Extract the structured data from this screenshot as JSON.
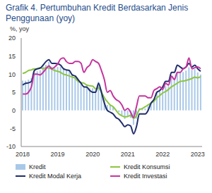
{
  "chart_data": {
    "type": "bar_line",
    "title": "Grafik 4. Pertumbuhan Kredit Berdasarkan Jenis Penggunaan (yoy)",
    "y_label": "%, yoy",
    "categories": [
      "2018",
      null,
      null,
      null,
      null,
      null,
      null,
      null,
      null,
      null,
      null,
      null,
      "2019",
      null,
      null,
      null,
      null,
      null,
      null,
      null,
      null,
      null,
      null,
      null,
      "2020",
      null,
      null,
      null,
      null,
      null,
      null,
      null,
      null,
      null,
      null,
      null,
      "2021",
      null,
      null,
      null,
      null,
      null,
      null,
      null,
      null,
      null,
      null,
      null,
      "2022",
      null,
      null,
      null,
      null,
      null,
      null,
      null,
      null,
      null,
      null,
      null,
      "2023",
      null
    ],
    "ylim": [
      -10,
      20
    ],
    "yticks": [
      -10,
      -5,
      0,
      5,
      10,
      15,
      20
    ],
    "grid": false,
    "legend": "bottom",
    "series": [
      {
        "name": "Kredit",
        "type": "bar",
        "color": "#a9c8e8",
        "values": [
          8.2,
          8.2,
          8.5,
          8.9,
          11.0,
          10.8,
          11.1,
          12.1,
          12.6,
          13.4,
          12.1,
          11.7,
          12.0,
          12.1,
          11.5,
          11.1,
          11.1,
          9.9,
          9.6,
          8.6,
          7.9,
          6.5,
          7.1,
          6.1,
          6.1,
          5.9,
          7.9,
          5.7,
          3.0,
          1.5,
          1.5,
          1.0,
          0.1,
          -0.5,
          -1.4,
          -2.4,
          -1.9,
          -2.1,
          -4.0,
          -2.3,
          0.6,
          0.6,
          0.5,
          1.2,
          2.2,
          3.2,
          4.7,
          5.2,
          5.8,
          6.7,
          6.7,
          9.1,
          9.0,
          10.7,
          10.7,
          10.6,
          11.0,
          11.9,
          11.2,
          11.4,
          10.5,
          9.9
        ]
      },
      {
        "name": "Kredit Konsumsi",
        "type": "line",
        "color": "#8dc63f",
        "values": [
          10.2,
          10.5,
          11.0,
          11.2,
          11.5,
          11.5,
          11.8,
          11.5,
          11.8,
          11.7,
          11.4,
          11.0,
          10.8,
          10.5,
          10.0,
          9.8,
          9.5,
          9.2,
          8.9,
          8.0,
          7.7,
          7.5,
          7.0,
          6.8,
          6.7,
          6.0,
          6.2,
          5.0,
          3.5,
          2.4,
          1.5,
          1.0,
          0.0,
          -1.0,
          -1.5,
          -1.8,
          -1.7,
          -1.4,
          -2.2,
          -1.5,
          0.2,
          0.5,
          1.0,
          1.5,
          2.0,
          2.5,
          3.5,
          4.1,
          4.8,
          5.2,
          5.8,
          6.5,
          7.0,
          7.5,
          8.0,
          8.1,
          8.3,
          8.5,
          8.8,
          9.2,
          9.0,
          9.3
        ]
      },
      {
        "name": "Kredit Modal Kerja",
        "type": "line",
        "color": "#1f2d6b",
        "values": [
          7.0,
          7.5,
          7.6,
          8.0,
          11.0,
          11.5,
          11.7,
          12.5,
          13.5,
          14.0,
          13.0,
          13.0,
          12.9,
          12.5,
          11.5,
          11.2,
          11.0,
          9.8,
          9.5,
          8.5,
          7.5,
          6.5,
          6.4,
          5.5,
          5.0,
          5.0,
          7.5,
          5.0,
          2.0,
          0.0,
          -0.5,
          -1.0,
          -2.0,
          -2.5,
          -3.5,
          -4.5,
          -4.0,
          -4.3,
          -6.5,
          -4.5,
          -1.0,
          -1.0,
          -1.0,
          0.0,
          2.0,
          3.0,
          5.0,
          5.5,
          6.5,
          8.0,
          8.0,
          10.5,
          10.5,
          12.5,
          12.0,
          11.5,
          12.0,
          13.0,
          12.0,
          12.5,
          11.5,
          10.8
        ]
      },
      {
        "name": "Kredit Investasi",
        "type": "line",
        "color": "#c4359e",
        "values": [
          4.5,
          4.5,
          5.0,
          6.5,
          10.0,
          10.0,
          9.8,
          10.5,
          11.5,
          12.3,
          11.5,
          12.0,
          12.8,
          14.2,
          14.5,
          13.5,
          13.0,
          13.0,
          13.5,
          13.5,
          13.0,
          10.5,
          11.8,
          12.5,
          14.0,
          13.5,
          13.0,
          11.0,
          8.5,
          5.0,
          5.5,
          4.0,
          3.0,
          2.5,
          1.5,
          0.0,
          0.5,
          -0.5,
          -2.0,
          1.0,
          4.0,
          4.0,
          4.0,
          3.5,
          3.5,
          5.5,
          6.0,
          6.5,
          5.8,
          7.5,
          7.0,
          9.5,
          8.5,
          10.5,
          10.5,
          11.5,
          12.0,
          14.5,
          11.5,
          11.8,
          12.0,
          11.5
        ]
      }
    ]
  }
}
